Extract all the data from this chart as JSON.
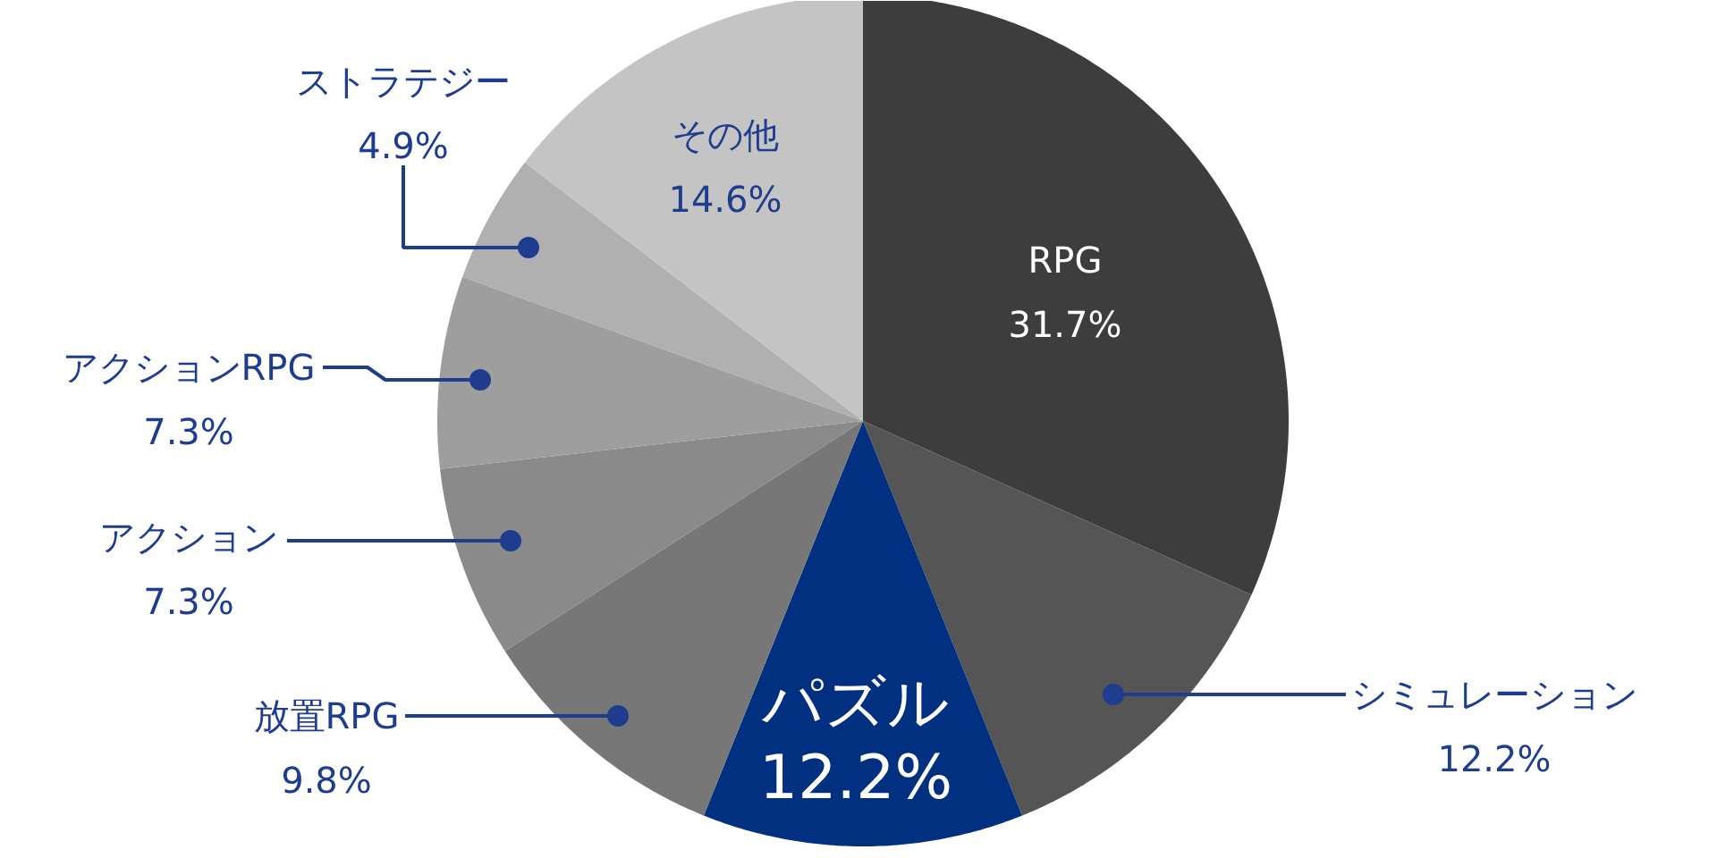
{
  "chart_data": {
    "type": "pie",
    "categories": [
      "RPG",
      "シミュレーション",
      "パズル",
      "放置RPG",
      "アクション",
      "アクションRPG",
      "ストラテジー",
      "その他"
    ],
    "values": [
      31.7,
      12.2,
      12.2,
      9.8,
      7.3,
      7.3,
      4.9,
      14.6
    ],
    "value_labels": [
      "31.7%",
      "12.2%",
      "12.2%",
      "9.8%",
      "7.3%",
      "7.3%",
      "4.9%",
      "14.6%"
    ],
    "colors": [
      "#3d3d3d",
      "#555555",
      "#00307f",
      "#777777",
      "#8a8a8a",
      "#9e9e9e",
      "#b0b0b0",
      "#c4c4c4"
    ]
  }
}
